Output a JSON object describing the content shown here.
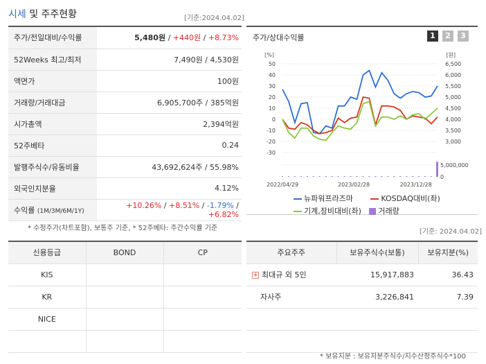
{
  "header": {
    "title_accent": "시세",
    "title_rest": " 및 주주현황",
    "date": "[기준:2024.04.02]"
  },
  "quote": {
    "rows": [
      {
        "label": "주가/전일대비/수익률",
        "price": "5,480원",
        "sep1": " / ",
        "change": "+440원",
        "sep2": " / ",
        "rate": "+8.73%"
      },
      {
        "label": "52Weeks 최고/최저",
        "value": "7,490원 / 4,530원"
      },
      {
        "label": "액면가",
        "value": "100원"
      },
      {
        "label": "거래량/거래대금",
        "value": "6,905,700주 / 385억원"
      },
      {
        "label": "시가총액",
        "value": "2,394억원"
      },
      {
        "label": "52주베타",
        "value": "0.24"
      },
      {
        "label": "발행주식수/유동비율",
        "value": "43,692,624주 / 55.98%"
      },
      {
        "label": "외국인지분율",
        "value": "4.12%"
      },
      {
        "label": "수익률",
        "label_small": "(1M/3M/6M/1Y)",
        "r1": "+10.26%",
        "r2": "+8.51%",
        "r3": "-1.79%",
        "r4": "+6.82%",
        "sep": " / "
      }
    ],
    "note": "* 수정주가(차트포함), 보통주 기준, * 52주베타: 주간수익률 기준"
  },
  "chart": {
    "title": "주가/상대수익률",
    "tabs": [
      "1",
      "2",
      "3"
    ],
    "active_tab": "1",
    "left_unit": "[%]",
    "right_unit": "[원]",
    "volume_tick": "5,000,000",
    "volume_zero": "0",
    "x_labels": [
      "2022/04/29",
      "2023/02/28",
      "2023/12/28"
    ],
    "legend": [
      {
        "label": "뉴파워프라즈마",
        "color": "#2f6fd3",
        "kind": "line"
      },
      {
        "label": "KOSDAQ대비(좌)",
        "color": "#d03a1e",
        "kind": "line"
      },
      {
        "label": "기계,장비대비(좌)",
        "color": "#8cc63e",
        "kind": "line"
      },
      {
        "label": "거래량",
        "color": "#a07ad6",
        "kind": "box"
      }
    ]
  },
  "chart_data": {
    "type": "line",
    "left_axis": {
      "unit": "[%]",
      "ylim": [
        -30,
        50
      ],
      "ticks": [
        50,
        40,
        30,
        20,
        10,
        0,
        -10,
        -20,
        -30
      ]
    },
    "right_axis": {
      "unit": "[원]",
      "ylim": [
        3000,
        6500
      ],
      "ticks": [
        "6,500",
        "6,000",
        "5,500",
        "5,000",
        "4,500",
        "4,000",
        "3,500",
        "3,000"
      ]
    },
    "x_ticks": [
      "2022/04/29",
      "2023/02/28",
      "2023/12/28"
    ],
    "series": [
      {
        "name": "뉴파워프라즈마",
        "axis": "left",
        "color": "#2f6fd3",
        "values": [
          27,
          16,
          -3,
          14,
          15,
          -12,
          -13,
          -6,
          -8,
          12,
          12,
          20,
          18,
          40,
          44,
          29,
          42,
          35,
          23,
          19,
          23,
          25,
          24,
          20,
          21,
          30
        ]
      },
      {
        "name": "KOSDAQ대비(좌)",
        "axis": "left",
        "color": "#d03a1e",
        "values": [
          0,
          -8,
          -9,
          -3,
          -5,
          -10,
          -13,
          -12,
          -10,
          1,
          -3,
          1,
          2,
          20,
          19,
          -5,
          12,
          12,
          11,
          8,
          0,
          3,
          2,
          1,
          -4,
          2
        ]
      },
      {
        "name": "기계,장비대비(좌)",
        "axis": "left",
        "color": "#8cc63e",
        "values": [
          0,
          -12,
          -17,
          -8,
          -8,
          -15,
          -18,
          -19,
          -12,
          -6,
          -8,
          -9,
          -3,
          14,
          16,
          -6,
          2,
          2,
          0,
          3,
          0,
          4,
          5,
          0,
          5,
          10
        ]
      },
      {
        "name": "거래량",
        "axis": "volume",
        "color": "#a07ad6",
        "values": [
          0,
          0,
          0,
          0,
          0,
          0,
          0,
          0,
          0,
          0,
          0,
          0,
          0,
          0,
          0,
          0,
          0,
          0,
          0,
          0,
          0,
          0,
          0,
          0,
          0,
          6905700
        ]
      }
    ]
  },
  "credit": {
    "headers": [
      "신용등급",
      "BOND",
      "CP"
    ],
    "rows": [
      {
        "name": "KIS",
        "bond": "",
        "cp": ""
      },
      {
        "name": "KR",
        "bond": "",
        "cp": ""
      },
      {
        "name": "NICE",
        "bond": "",
        "cp": ""
      },
      {
        "name": "",
        "bond": "",
        "cp": ""
      }
    ]
  },
  "holders": {
    "date": "[기준: 2024.04.02]",
    "headers": [
      "주요주주",
      "보유주식수(보통)",
      "보유지분(%)"
    ],
    "rows": [
      {
        "name": "최대규 외 5인",
        "shares": "15,917,883",
        "pct": "36.43",
        "expandable": true
      },
      {
        "name": "자사주",
        "shares": "3,226,841",
        "pct": "7.39",
        "expandable": false
      },
      {
        "name": "",
        "shares": "",
        "pct": ""
      },
      {
        "name": "",
        "shares": "",
        "pct": ""
      }
    ],
    "footnote": "* 보유지분 : 보유지분주식수/지수산정주식수*100"
  }
}
